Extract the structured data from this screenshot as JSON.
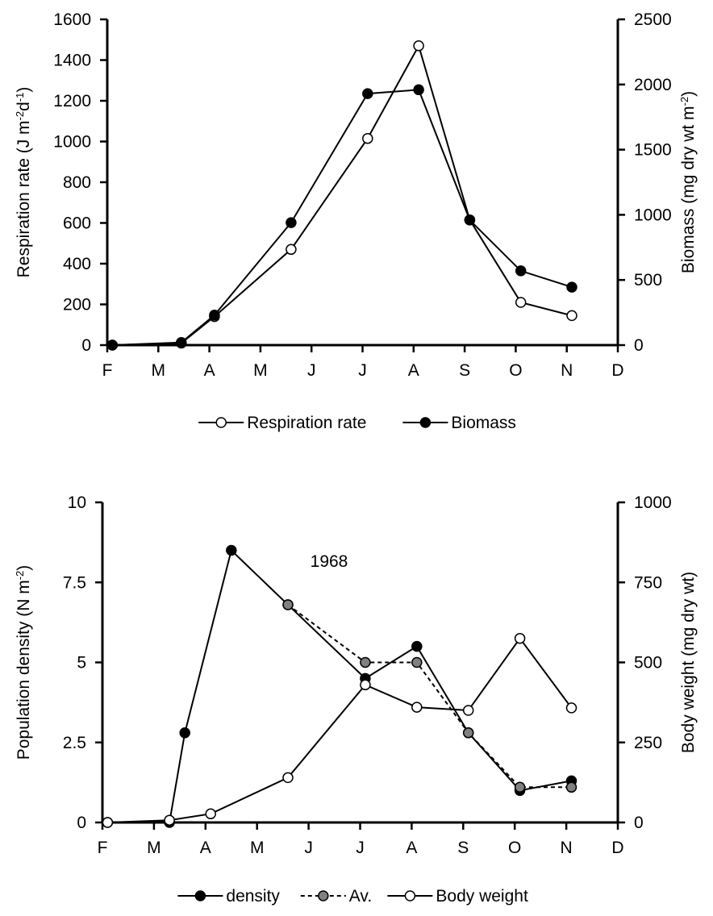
{
  "chart_data": [
    {
      "type": "line",
      "x": [
        "F",
        "M",
        "A",
        "M",
        "J",
        "J",
        "A",
        "S",
        "O",
        "N",
        "D"
      ],
      "xlim_months": [
        0,
        10
      ],
      "left_axis": {
        "label_parts": [
          "Respiration rate (J m",
          "-2",
          "d",
          "-1",
          ")"
        ],
        "ylim": [
          0,
          1600
        ],
        "ticks": [
          "0",
          "200",
          "400",
          "600",
          "800",
          "1000",
          "1200",
          "1400",
          "1600"
        ],
        "tick_values": [
          0,
          200,
          400,
          600,
          800,
          1000,
          1200,
          1400,
          1600
        ]
      },
      "right_axis": {
        "label_parts": [
          "Biomass (mg dry wt m",
          "-2",
          ")"
        ],
        "ylim": [
          0,
          2500
        ],
        "ticks": [
          "0",
          "500",
          "1000",
          "1500",
          "2000",
          "2500"
        ],
        "tick_values": [
          0,
          500,
          1000,
          1500,
          2000,
          2500
        ]
      },
      "series": [
        {
          "name": "Respiration rate",
          "axis": "left",
          "marker": "open-circle",
          "line": "solid",
          "points": [
            [
              0.1,
              0
            ],
            [
              1.45,
              10
            ],
            [
              2.1,
              140
            ],
            [
              3.6,
              470
            ],
            [
              5.1,
              1015
            ],
            [
              6.1,
              1470
            ],
            [
              7.1,
              615
            ],
            [
              8.1,
              210
            ],
            [
              9.1,
              145
            ]
          ]
        },
        {
          "name": "Biomass",
          "axis": "right",
          "marker": "filled-circle",
          "line": "solid",
          "points": [
            [
              0.1,
              0
            ],
            [
              1.45,
              20
            ],
            [
              2.1,
              230
            ],
            [
              3.6,
              940
            ],
            [
              5.1,
              1930
            ],
            [
              6.1,
              1960
            ],
            [
              7.1,
              960
            ],
            [
              8.1,
              570
            ],
            [
              9.1,
              445
            ]
          ]
        }
      ],
      "legend": {
        "placement": "bottom",
        "entries": [
          "Respiration rate",
          "Biomass"
        ]
      }
    },
    {
      "type": "line",
      "x": [
        "F",
        "M",
        "A",
        "M",
        "J",
        "J",
        "A",
        "S",
        "O",
        "N",
        "D"
      ],
      "xlim_months": [
        0,
        10
      ],
      "annotation": "1968",
      "left_axis": {
        "label_parts": [
          "Population density (N m",
          "-2",
          ")"
        ],
        "ylim": [
          0,
          10
        ],
        "ticks": [
          "0",
          "2.5",
          "5",
          "7.5",
          "10"
        ],
        "tick_values": [
          0,
          2.5,
          5,
          7.5,
          10
        ]
      },
      "right_axis": {
        "label_parts": [
          "Body weight  (mg dry wt)"
        ],
        "ylim": [
          0,
          1000
        ],
        "ticks": [
          "0",
          "250",
          "500",
          "750",
          "1000"
        ],
        "tick_values": [
          0,
          250,
          500,
          750,
          1000
        ]
      },
      "series": [
        {
          "name": "density",
          "axis": "left",
          "marker": "filled-circle",
          "line": "solid",
          "points": [
            [
              0.1,
              0
            ],
            [
              1.3,
              0
            ],
            [
              1.6,
              2.8
            ],
            [
              2.5,
              8.5
            ],
            [
              3.6,
              6.8
            ],
            [
              5.1,
              4.5
            ],
            [
              6.1,
              5.5
            ],
            [
              7.1,
              2.8
            ],
            [
              8.1,
              1.0
            ],
            [
              9.1,
              1.3
            ]
          ]
        },
        {
          "name": "Av.",
          "axis": "left",
          "marker": "gray-circle",
          "line": "dashed",
          "points": [
            [
              3.6,
              6.8
            ],
            [
              5.1,
              5.0
            ],
            [
              6.1,
              5.0
            ],
            [
              7.1,
              2.8
            ],
            [
              8.1,
              1.1
            ],
            [
              9.1,
              1.1
            ]
          ]
        },
        {
          "name": "Body weight",
          "axis": "right",
          "marker": "open-circle",
          "line": "solid",
          "points": [
            [
              0.1,
              0
            ],
            [
              1.3,
              7
            ],
            [
              2.1,
              27
            ],
            [
              3.6,
              140
            ],
            [
              5.1,
              430
            ],
            [
              6.1,
              360
            ],
            [
              7.1,
              350
            ],
            [
              8.1,
              575
            ],
            [
              9.1,
              358
            ]
          ]
        }
      ],
      "legend": {
        "placement": "bottom",
        "entries": [
          "density",
          "Av.",
          "Body weight"
        ]
      }
    }
  ]
}
